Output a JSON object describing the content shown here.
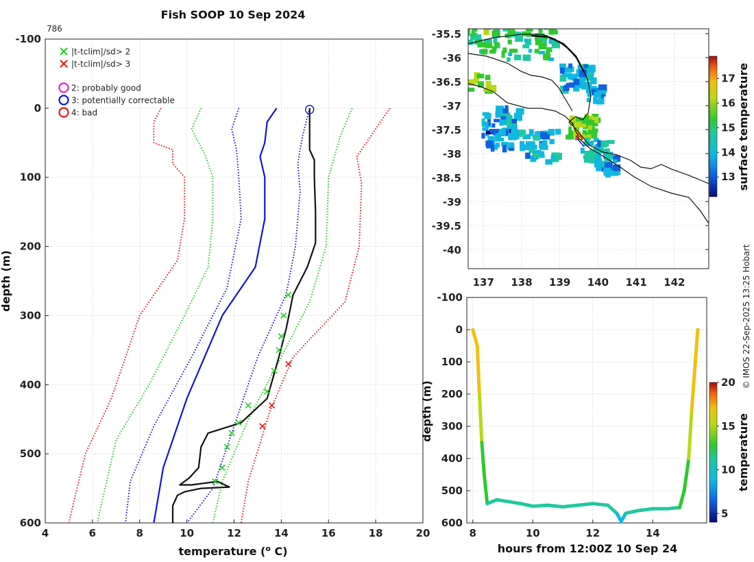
{
  "header": {
    "title": "Fish SOOP 10 Sep 2024",
    "profile_id": "786",
    "credit": "© IMOS 22-Sep-2025 13:25 Hobart"
  },
  "chart_data": [
    {
      "id": "profile",
      "type": "line",
      "xlabel": "temperature",
      "ylabel": "depth (m)",
      "xlim": [
        4,
        20
      ],
      "ylim": [
        -100,
        600
      ],
      "xticks": [
        "4",
        "6",
        "8",
        "10",
        "12",
        "14",
        "16",
        "18",
        "20"
      ],
      "yticks": [
        "-100",
        "0",
        "100",
        "200",
        "300",
        "400",
        "500",
        "600"
      ],
      "legend": [
        {
          "symbol": "×",
          "color": "#22cc22",
          "label": "|t-tclim|/sd> 2"
        },
        {
          "symbol": "×",
          "color": "#ee1111",
          "label": "|t-tclim|/sd> 3"
        },
        {
          "symbol": "○",
          "color": "#dd22dd",
          "label": "2: probably good"
        },
        {
          "symbol": "○",
          "color": "#1111dd",
          "label": "3: potentially correctable"
        },
        {
          "symbol": "○",
          "color": "#ee1111",
          "label": "4: bad"
        }
      ],
      "series": [
        {
          "name": "clim-3sd-left",
          "color": "#ee1111",
          "style": "dotted",
          "points": [
            [
              8.9,
              0
            ],
            [
              8.6,
              20
            ],
            [
              8.6,
              50
            ],
            [
              9.4,
              60
            ],
            [
              9.4,
              80
            ],
            [
              9.9,
              100
            ],
            [
              9.9,
              160
            ],
            [
              9.6,
              220
            ],
            [
              8.0,
              300
            ],
            [
              6.8,
              420
            ],
            [
              5.7,
              500
            ],
            [
              5.0,
              600
            ]
          ]
        },
        {
          "name": "clim-2sd-left",
          "color": "#22cc22",
          "style": "dotted",
          "points": [
            [
              10.6,
              0
            ],
            [
              10.2,
              30
            ],
            [
              10.8,
              70
            ],
            [
              11.1,
              100
            ],
            [
              11.1,
              160
            ],
            [
              10.9,
              230
            ],
            [
              9.9,
              300
            ],
            [
              8.4,
              400
            ],
            [
              7.0,
              480
            ],
            [
              6.2,
              600
            ]
          ]
        },
        {
          "name": "clim-1sd-left",
          "color": "#1111dd",
          "style": "dotted",
          "points": [
            [
              12.2,
              0
            ],
            [
              11.9,
              30
            ],
            [
              12.1,
              60
            ],
            [
              12.2,
              100
            ],
            [
              12.3,
              160
            ],
            [
              11.7,
              260
            ],
            [
              10.2,
              360
            ],
            [
              8.6,
              460
            ],
            [
              7.6,
              540
            ],
            [
              7.4,
              600
            ]
          ]
        },
        {
          "name": "clim-mean",
          "color": "#1111dd",
          "style": "solid",
          "points": [
            [
              13.8,
              0
            ],
            [
              13.4,
              20
            ],
            [
              13.3,
              50
            ],
            [
              13.1,
              70
            ],
            [
              13.3,
              100
            ],
            [
              13.3,
              160
            ],
            [
              12.9,
              230
            ],
            [
              11.5,
              300
            ],
            [
              10.0,
              420
            ],
            [
              9.0,
              520
            ],
            [
              8.6,
              600
            ]
          ]
        },
        {
          "name": "clim-1sd-right",
          "color": "#1111dd",
          "style": "dotted",
          "points": [
            [
              15.2,
              0
            ],
            [
              14.9,
              40
            ],
            [
              14.7,
              80
            ],
            [
              14.8,
              120
            ],
            [
              14.6,
              200
            ],
            [
              14.2,
              270
            ],
            [
              13.0,
              360
            ],
            [
              12.0,
              460
            ],
            [
              11.1,
              550
            ],
            [
              10.0,
              600
            ]
          ]
        },
        {
          "name": "clim-2sd-right",
          "color": "#22cc22",
          "style": "dotted",
          "points": [
            [
              17.0,
              0
            ],
            [
              16.5,
              40
            ],
            [
              16.0,
              100
            ],
            [
              15.9,
              200
            ],
            [
              15.2,
              280
            ],
            [
              14.0,
              360
            ],
            [
              12.6,
              450
            ],
            [
              11.5,
              540
            ],
            [
              11.1,
              600
            ]
          ]
        },
        {
          "name": "clim-3sd-right",
          "color": "#ee1111",
          "style": "dotted",
          "points": [
            [
              18.6,
              0
            ],
            [
              18.0,
              30
            ],
            [
              17.2,
              70
            ],
            [
              17.4,
              110
            ],
            [
              17.3,
              200
            ],
            [
              16.7,
              280
            ],
            [
              14.5,
              360
            ],
            [
              13.5,
              440
            ],
            [
              12.6,
              540
            ],
            [
              12.3,
              600
            ]
          ]
        },
        {
          "name": "observed",
          "color": "#111111",
          "style": "solid",
          "points": [
            [
              15.2,
              0
            ],
            [
              15.2,
              60
            ],
            [
              15.4,
              75
            ],
            [
              15.4,
              100
            ],
            [
              15.45,
              150
            ],
            [
              15.45,
              195
            ],
            [
              15.1,
              230
            ],
            [
              14.5,
              270
            ],
            [
              14.2,
              320
            ],
            [
              13.9,
              360
            ],
            [
              13.4,
              420
            ],
            [
              12.3,
              455
            ],
            [
              10.9,
              470
            ],
            [
              10.6,
              490
            ],
            [
              10.5,
              520
            ],
            [
              10.1,
              535
            ],
            [
              9.7,
              545
            ],
            [
              10.2,
              545
            ],
            [
              11.3,
              540
            ],
            [
              11.8,
              548
            ],
            [
              10.6,
              550
            ],
            [
              9.9,
              555
            ],
            [
              9.6,
              560
            ],
            [
              9.4,
              575
            ],
            [
              9.4,
              600
            ]
          ]
        }
      ],
      "outlier_points": {
        "green": [
          [
            14.3,
            270
          ],
          [
            14.1,
            300
          ],
          [
            14.0,
            330
          ],
          [
            13.9,
            350
          ],
          [
            13.7,
            380
          ],
          [
            13.4,
            410
          ],
          [
            12.6,
            430
          ],
          [
            12.2,
            455
          ],
          [
            11.9,
            470
          ],
          [
            11.7,
            490
          ],
          [
            11.5,
            520
          ],
          [
            11.2,
            540
          ]
        ],
        "red": [
          [
            14.3,
            370
          ],
          [
            13.6,
            430
          ],
          [
            13.2,
            460
          ]
        ]
      },
      "qc_marker": {
        "color": "#1111dd",
        "x": 15.2,
        "depth": 2
      }
    },
    {
      "id": "map",
      "type": "heatmap",
      "colorbar_label": "surface temperature",
      "colorbar_ticks": [
        "13",
        "14",
        "15",
        "16",
        "17"
      ],
      "colorbar_range": [
        12.2,
        17.9
      ],
      "xlim": [
        136.6,
        142.9
      ],
      "ylim": [
        -40.4,
        -35.4
      ],
      "xticks": [
        "137",
        "138",
        "139",
        "140",
        "141",
        "142"
      ],
      "yticks": [
        "-35.5",
        "-36",
        "-36.5",
        "-37",
        "-37.5",
        "-38",
        "-38.5",
        "-39",
        "-39.5",
        "-40"
      ],
      "track_marker": {
        "lon": 139.5,
        "lat": -37.65,
        "color": "#ee1111"
      }
    },
    {
      "id": "transect",
      "type": "scatter",
      "xlabel": "hours from 12:00Z 10 Sep 24",
      "ylabel": "depth (m)",
      "xlim": [
        7.8,
        15.8
      ],
      "ylim": [
        -100,
        600
      ],
      "xticks": [
        "8",
        "10",
        "12",
        "14"
      ],
      "yticks": [
        "-100",
        "0",
        "100",
        "200",
        "300",
        "400",
        "500",
        "600"
      ],
      "colorbar_label": "temperature",
      "colorbar_ticks": [
        "5",
        "10",
        "15",
        "20"
      ],
      "colorbar_range": [
        4,
        20
      ],
      "series": [
        {
          "name": "tow-path",
          "points": [
            [
              8.0,
              0,
              15.2
            ],
            [
              8.15,
              50,
              15.1
            ],
            [
              8.22,
              200,
              14.5
            ],
            [
              8.3,
              350,
              13.6
            ],
            [
              8.38,
              450,
              12.4
            ],
            [
              8.48,
              540,
              11.0
            ],
            [
              8.8,
              528,
              11.0
            ],
            [
              9.6,
              540,
              11.0
            ],
            [
              10.0,
              548,
              11.0
            ],
            [
              10.5,
              545,
              11.0
            ],
            [
              11.0,
              550,
              11.0
            ],
            [
              11.5,
              545,
              11.0
            ],
            [
              12.0,
              540,
              11.0
            ],
            [
              12.5,
              545,
              11.0
            ],
            [
              12.8,
              570,
              10.5
            ],
            [
              12.95,
              595,
              9.5
            ],
            [
              13.1,
              570,
              10.5
            ],
            [
              13.5,
              562,
              10.8
            ],
            [
              14.0,
              556,
              11.0
            ],
            [
              14.5,
              556,
              11.0
            ],
            [
              14.9,
              552,
              11.0
            ],
            [
              15.05,
              500,
              12.0
            ],
            [
              15.2,
              400,
              13.4
            ],
            [
              15.3,
              250,
              14.3
            ],
            [
              15.42,
              100,
              15.0
            ],
            [
              15.5,
              0,
              15.2
            ]
          ]
        }
      ]
    }
  ]
}
